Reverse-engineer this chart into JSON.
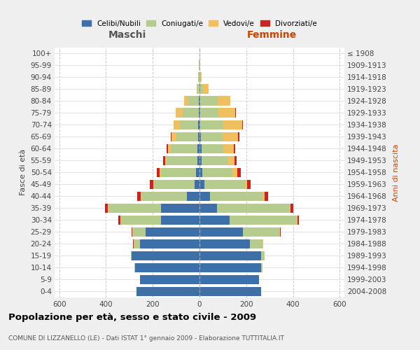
{
  "age_groups": [
    "0-4",
    "5-9",
    "10-14",
    "15-19",
    "20-24",
    "25-29",
    "30-34",
    "35-39",
    "40-44",
    "45-49",
    "50-54",
    "55-59",
    "60-64",
    "65-69",
    "70-74",
    "75-79",
    "80-84",
    "85-89",
    "90-94",
    "95-99",
    "100+"
  ],
  "birth_years": [
    "2004-2008",
    "1999-2003",
    "1994-1998",
    "1989-1993",
    "1984-1988",
    "1979-1983",
    "1974-1978",
    "1969-1973",
    "1964-1968",
    "1959-1963",
    "1954-1958",
    "1949-1953",
    "1944-1948",
    "1939-1943",
    "1934-1938",
    "1929-1933",
    "1924-1928",
    "1919-1923",
    "1914-1918",
    "1909-1913",
    "≤ 1908"
  ],
  "male_celibi": [
    270,
    255,
    275,
    290,
    255,
    230,
    165,
    165,
    55,
    20,
    15,
    10,
    8,
    5,
    5,
    3,
    2,
    0,
    0,
    0,
    0
  ],
  "male_coniugati": [
    0,
    0,
    3,
    5,
    25,
    55,
    170,
    225,
    195,
    175,
    150,
    130,
    115,
    95,
    80,
    70,
    45,
    8,
    5,
    2,
    0
  ],
  "male_vedovi": [
    0,
    0,
    0,
    0,
    2,
    4,
    3,
    3,
    3,
    3,
    5,
    8,
    12,
    20,
    25,
    28,
    20,
    5,
    2,
    0,
    0
  ],
  "male_divorziati": [
    0,
    0,
    0,
    0,
    2,
    3,
    8,
    10,
    15,
    15,
    12,
    8,
    5,
    3,
    2,
    2,
    0,
    0,
    0,
    0,
    0
  ],
  "female_nubili": [
    265,
    255,
    265,
    265,
    215,
    185,
    130,
    75,
    45,
    20,
    12,
    10,
    8,
    5,
    3,
    2,
    2,
    2,
    0,
    0,
    0
  ],
  "female_coniugate": [
    0,
    0,
    5,
    15,
    55,
    155,
    285,
    310,
    225,
    175,
    130,
    110,
    95,
    95,
    100,
    80,
    75,
    12,
    3,
    2,
    0
  ],
  "female_vedove": [
    0,
    0,
    0,
    0,
    2,
    3,
    3,
    5,
    8,
    10,
    20,
    30,
    45,
    65,
    80,
    72,
    55,
    25,
    5,
    2,
    0
  ],
  "female_divorziate": [
    0,
    0,
    0,
    0,
    2,
    3,
    8,
    12,
    15,
    15,
    15,
    10,
    5,
    5,
    3,
    3,
    0,
    0,
    0,
    0,
    0
  ],
  "color_celibi": "#3d6fa8",
  "color_coniugati": "#b5cc8e",
  "color_vedovi": "#f0c060",
  "color_divorziati": "#cc2222",
  "title": "Popolazione per età, sesso e stato civile - 2009",
  "subtitle": "COMUNE DI LIZZANELLO (LE) - Dati ISTAT 1° gennaio 2009 - Elaborazione TUTTITALIA.IT",
  "label_maschi": "Maschi",
  "label_femmine": "Femmine",
  "label_fasce": "Fasce di età",
  "label_anni": "Anni di nascita",
  "legend_celibi": "Celibi/Nubili",
  "legend_coniugati": "Coniugati/e",
  "legend_vedovi": "Vedovi/e",
  "legend_divorziati": "Divorziati/e",
  "xlim": 620,
  "bg_color": "#efefef",
  "plot_bg_color": "#ffffff",
  "grid_color": "#cccccc",
  "anni_label_color": "#cc4400",
  "femmine_label_color": "#cc4400"
}
